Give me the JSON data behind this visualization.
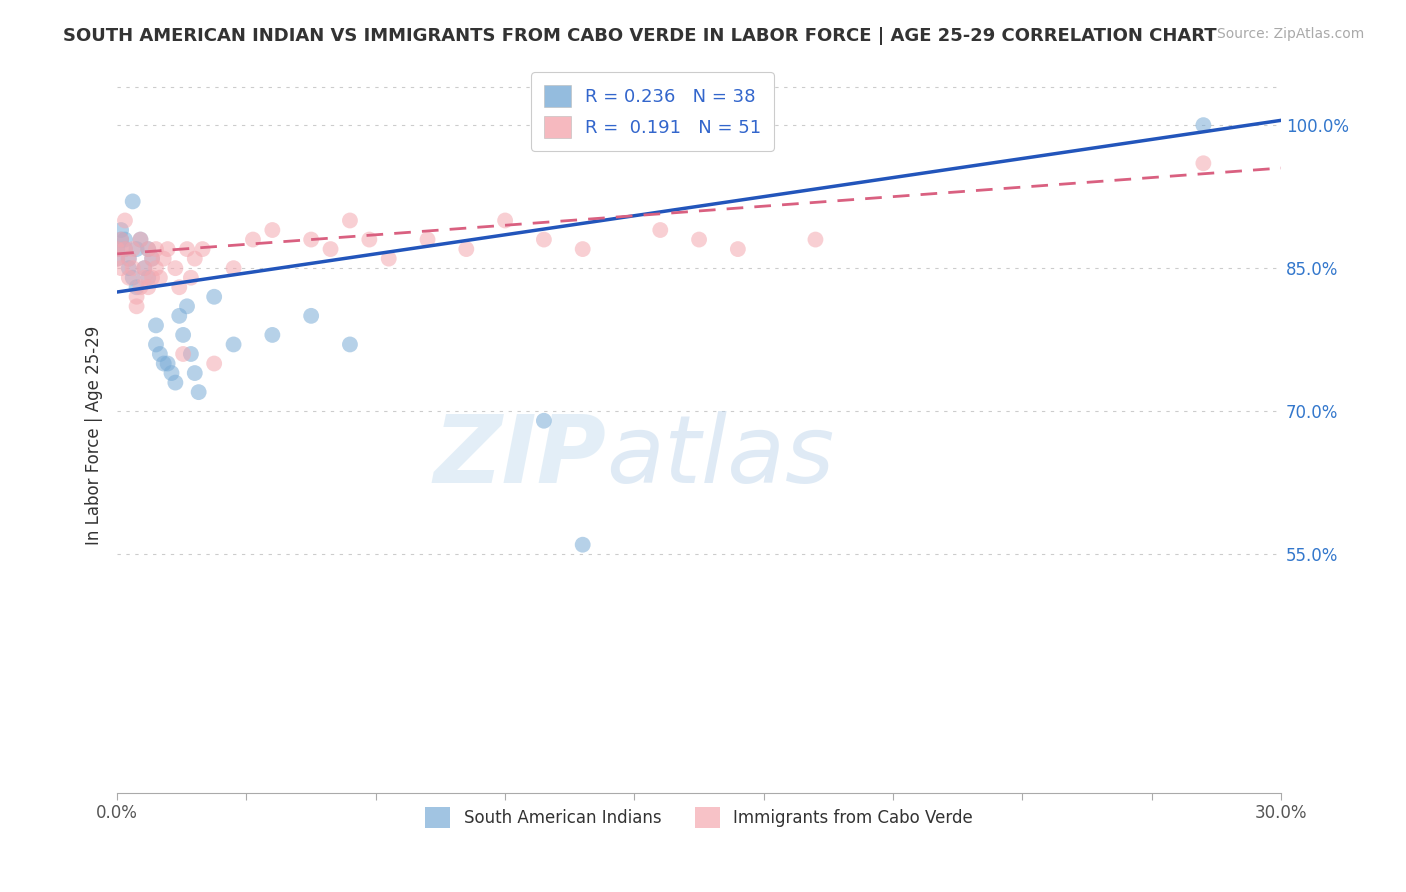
{
  "title": "SOUTH AMERICAN INDIAN VS IMMIGRANTS FROM CABO VERDE IN LABOR FORCE | AGE 25-29 CORRELATION CHART",
  "source": "Source: ZipAtlas.com",
  "ylabel": "In Labor Force | Age 25-29",
  "xlim": [
    0.0,
    0.3
  ],
  "ylim": [
    0.3,
    1.05
  ],
  "background_color": "#ffffff",
  "watermark_zip": "ZIP",
  "watermark_atlas": "atlas",
  "legend_r_blue": "0.236",
  "legend_n_blue": "38",
  "legend_r_pink": "0.191",
  "legend_n_pink": "51",
  "blue_color": "#7aacd6",
  "pink_color": "#f4a8b0",
  "line_blue": "#2255bb",
  "line_pink": "#d96080",
  "grid_color": "#cccccc",
  "blue_line_x0": 0.0,
  "blue_line_y0": 0.825,
  "blue_line_x1": 0.3,
  "blue_line_y1": 1.005,
  "pink_line_x0": 0.0,
  "pink_line_y0": 0.865,
  "pink_line_x1": 0.3,
  "pink_line_y1": 0.955,
  "blue_scatter_x": [
    0.0,
    0.0,
    0.001,
    0.001,
    0.002,
    0.002,
    0.003,
    0.003,
    0.004,
    0.004,
    0.005,
    0.005,
    0.006,
    0.007,
    0.008,
    0.008,
    0.009,
    0.01,
    0.01,
    0.011,
    0.012,
    0.013,
    0.014,
    0.015,
    0.016,
    0.017,
    0.018,
    0.019,
    0.02,
    0.021,
    0.025,
    0.03,
    0.04,
    0.05,
    0.06,
    0.11,
    0.12,
    0.28
  ],
  "blue_scatter_y": [
    0.87,
    0.86,
    0.88,
    0.89,
    0.87,
    0.88,
    0.86,
    0.85,
    0.92,
    0.84,
    0.87,
    0.83,
    0.88,
    0.85,
    0.87,
    0.84,
    0.86,
    0.79,
    0.77,
    0.76,
    0.75,
    0.75,
    0.74,
    0.73,
    0.8,
    0.78,
    0.81,
    0.76,
    0.74,
    0.72,
    0.82,
    0.77,
    0.78,
    0.8,
    0.77,
    0.69,
    0.56,
    1.0
  ],
  "pink_scatter_x": [
    0.0,
    0.0,
    0.001,
    0.001,
    0.002,
    0.002,
    0.003,
    0.003,
    0.004,
    0.004,
    0.005,
    0.005,
    0.006,
    0.006,
    0.007,
    0.007,
    0.008,
    0.008,
    0.009,
    0.009,
    0.01,
    0.01,
    0.011,
    0.012,
    0.013,
    0.015,
    0.016,
    0.017,
    0.018,
    0.019,
    0.02,
    0.022,
    0.025,
    0.03,
    0.035,
    0.04,
    0.05,
    0.055,
    0.06,
    0.065,
    0.07,
    0.08,
    0.09,
    0.1,
    0.11,
    0.12,
    0.14,
    0.15,
    0.16,
    0.18,
    0.28
  ],
  "pink_scatter_y": [
    0.87,
    0.86,
    0.88,
    0.85,
    0.9,
    0.87,
    0.86,
    0.84,
    0.85,
    0.87,
    0.82,
    0.81,
    0.88,
    0.83,
    0.85,
    0.84,
    0.87,
    0.83,
    0.86,
    0.84,
    0.85,
    0.87,
    0.84,
    0.86,
    0.87,
    0.85,
    0.83,
    0.76,
    0.87,
    0.84,
    0.86,
    0.87,
    0.75,
    0.85,
    0.88,
    0.89,
    0.88,
    0.87,
    0.9,
    0.88,
    0.86,
    0.88,
    0.87,
    0.9,
    0.88,
    0.87,
    0.89,
    0.88,
    0.87,
    0.88,
    0.96
  ]
}
